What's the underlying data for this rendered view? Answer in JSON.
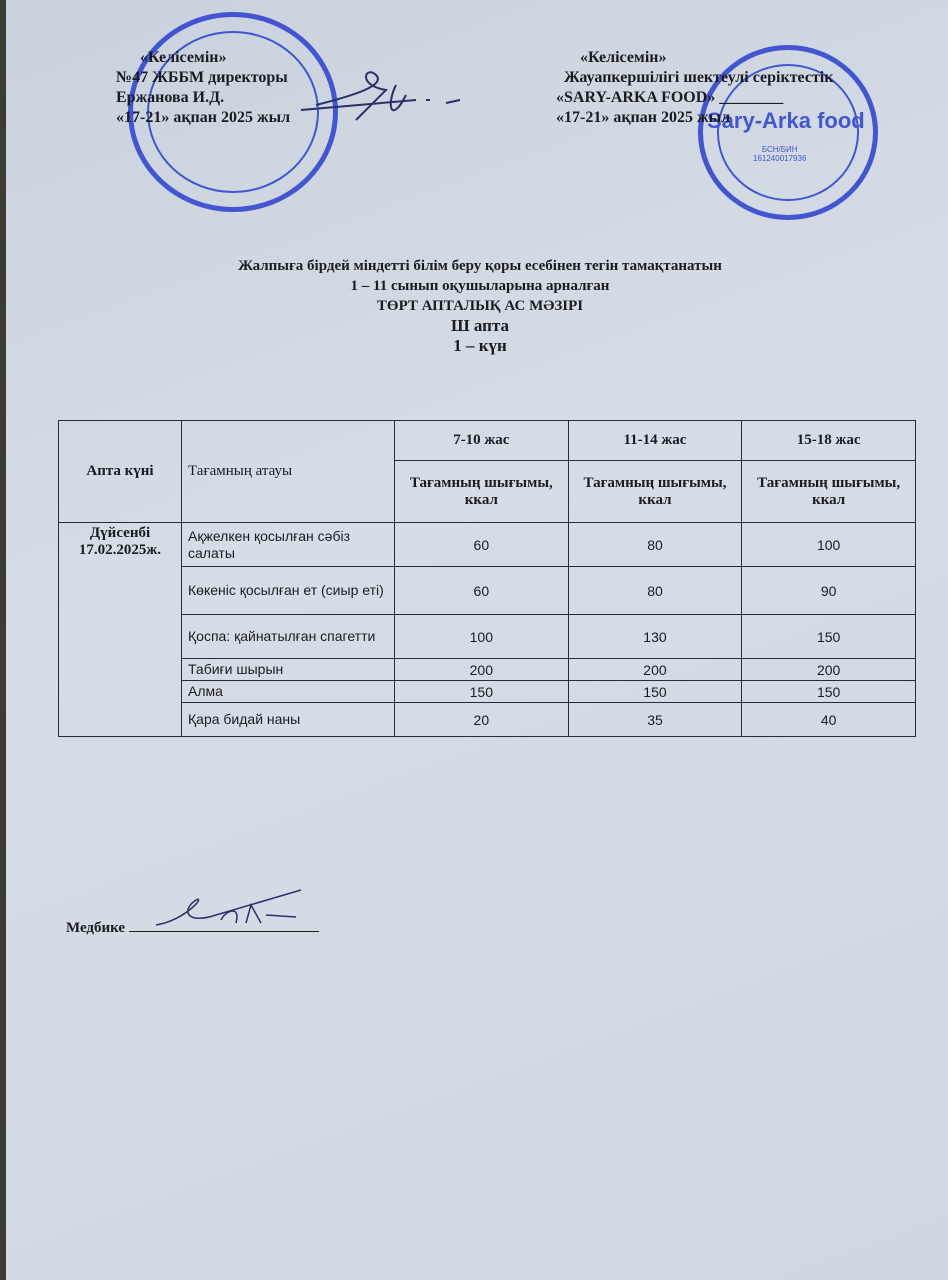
{
  "left_header": {
    "lines": [
      "«Келісемін»",
      "№47 ЖББМ директоры",
      "Ержанова И.Д.",
      "«17-21» ақпан 2025 жыл"
    ]
  },
  "right_header": {
    "lines": [
      "«Келісемін»",
      "Жауапкершілігі шектеулі серіктестік",
      "«SARY-ARKA FOOD» ________",
      "«17-21» ақпан 2025 жыл"
    ]
  },
  "stamp_right": {
    "brand": "Sary-Arka food",
    "bin": "БСН/БИН 161240017936"
  },
  "title": {
    "line1": "Жалпыға бірдей міндетті білім беру қоры есебінен тегін тамақтанатын",
    "line2": "1 – 11 сынып оқушыларына арналған",
    "line3": "ТӨРТ АПТАЛЫҚ АС МӘЗІРІ",
    "line4": "Ш  апта",
    "line5": "1 – күн"
  },
  "table": {
    "col_day": "Апта күні",
    "col_dish": "Тағамның атауы",
    "age_groups": [
      "7-10 жас",
      "11-14 жас",
      "15-18 жас"
    ],
    "sub_header": "Тағамның шығымы, ккал",
    "day": "Дүйсенбі 17.02.2025ж.",
    "rows": [
      {
        "dish": "Ақжелкен қосылған сәбіз салаты",
        "v": [
          "60",
          "80",
          "100"
        ]
      },
      {
        "dish": "Көкеніс қосылған ет (сиыр еті)",
        "v": [
          "60",
          "80",
          "90"
        ]
      },
      {
        "dish": "Қоспа: қайнатылған спагетти",
        "v": [
          "100",
          "130",
          "150"
        ]
      },
      {
        "dish": "Табиғи шырын",
        "v": [
          "200",
          "200",
          "200"
        ]
      },
      {
        "dish": "Алма",
        "v": [
          "150",
          "150",
          "150"
        ]
      },
      {
        "dish": "Қара бидай наны",
        "v": [
          "20",
          "35",
          "40"
        ]
      }
    ]
  },
  "footer": {
    "nurse_label": "Медбике"
  }
}
